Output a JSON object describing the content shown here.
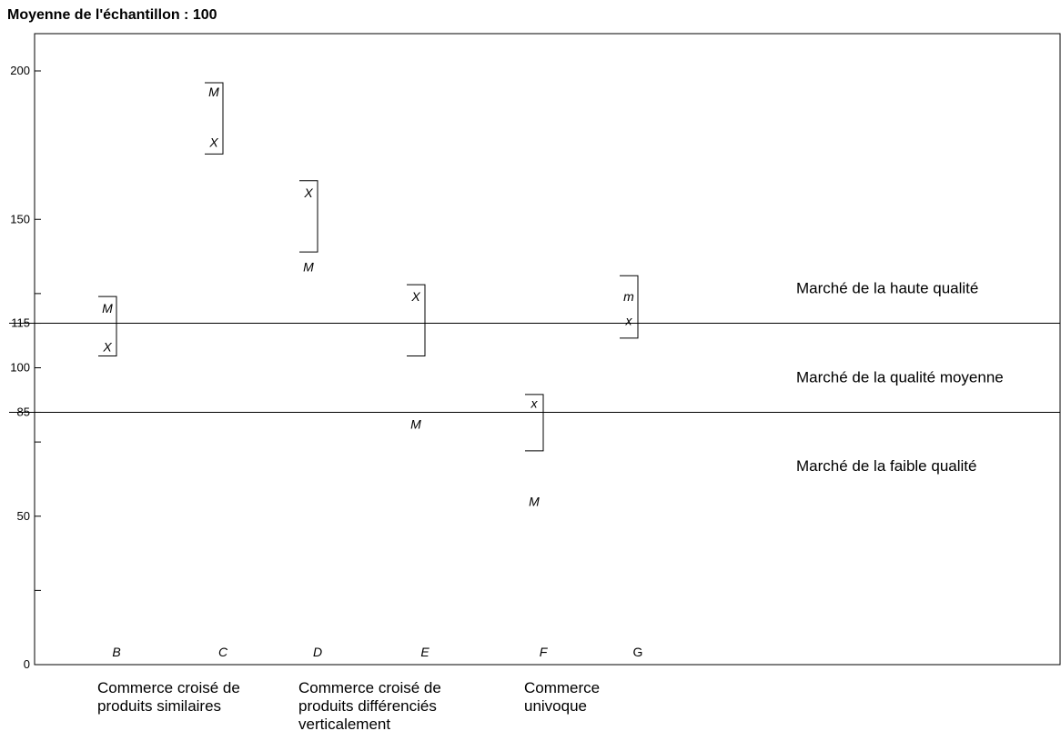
{
  "chart_data": {
    "type": "scatter",
    "title": "Moyenne de l'échantillon : 100",
    "ylim": [
      0,
      215
    ],
    "y_ticks_labeled": [
      0,
      50,
      85,
      100,
      115,
      150,
      200
    ],
    "y_ticks_unlabeled": [
      25,
      75,
      125
    ],
    "grid": false,
    "reference_lines": [
      85,
      115
    ],
    "zones": [
      {
        "label": "Marché de la haute qualité",
        "y": 127
      },
      {
        "label": "Marché de la qualité moyenne",
        "y": 97
      },
      {
        "label": "Marché de la faible qualité",
        "y": 67
      }
    ],
    "categories": [
      {
        "label": "B",
        "italic": true,
        "bracket": [
          104,
          124
        ],
        "marks": [
          {
            "label": "M",
            "value": 120
          },
          {
            "label": "X",
            "value": 107
          }
        ]
      },
      {
        "label": "C",
        "italic": true,
        "bracket": [
          172,
          196
        ],
        "marks": [
          {
            "label": "M",
            "value": 193
          },
          {
            "label": "X",
            "value": 176
          }
        ]
      },
      {
        "label": "D",
        "italic": true,
        "bracket": [
          139,
          163
        ],
        "marks": [
          {
            "label": "X",
            "value": 159
          },
          {
            "label": "M",
            "value": 134
          }
        ]
      },
      {
        "label": "E",
        "italic": true,
        "bracket": [
          104,
          128
        ],
        "marks": [
          {
            "label": "X",
            "value": 124
          },
          {
            "label": "M",
            "value": 81
          }
        ]
      },
      {
        "label": "F",
        "italic": true,
        "bracket": [
          72,
          91
        ],
        "marks": [
          {
            "label": "x",
            "value": 88
          },
          {
            "label": "M",
            "value": 55
          }
        ]
      },
      {
        "label": "G",
        "italic": false,
        "bracket": [
          110,
          131
        ],
        "marks": [
          {
            "label": "m",
            "value": 124
          },
          {
            "label": "x",
            "value": 116
          }
        ]
      }
    ],
    "group_labels": [
      {
        "lines": [
          "Commerce croisé de",
          "produits similaires"
        ],
        "under": "B"
      },
      {
        "lines": [
          "Commerce croisé de",
          "produits différenciés",
          "verticalement"
        ],
        "under": "D"
      },
      {
        "lines": [
          "Commerce",
          "univoque"
        ],
        "under": "F"
      }
    ]
  }
}
